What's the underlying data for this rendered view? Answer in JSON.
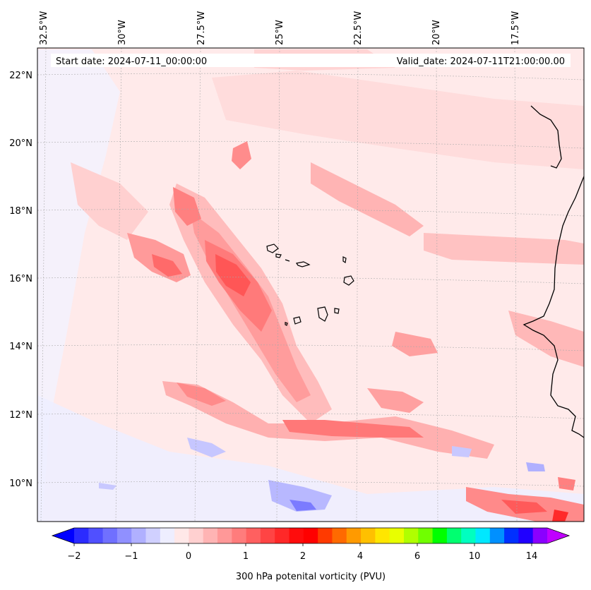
{
  "map": {
    "start_label": "Start date: 2024-07-11_00:00:00",
    "valid_label": "Valid_date: 2024-07-11T21:00:00.00",
    "lon_labels": [
      "32.5°W",
      "30°W",
      "27.5°W",
      "25°W",
      "22.5°W",
      "20°W",
      "17.5°W"
    ],
    "lat_labels": [
      "22°N",
      "20°N",
      "18°N",
      "16°N",
      "14°N",
      "12°N",
      "10°N"
    ]
  },
  "colorbar": {
    "title": "300 hPa potenital vorticity (PVU)",
    "tick_labels": [
      "−2",
      "−1",
      "0",
      "1",
      "2",
      "4",
      "6",
      "10",
      "14"
    ],
    "colors": [
      "#0000ff",
      "#2b2bff",
      "#5050ff",
      "#7070ff",
      "#9090ff",
      "#b0b0ff",
      "#d0d0ff",
      "#eeeeff",
      "#ffe8e8",
      "#ffd0d0",
      "#ffb4b4",
      "#ff9898",
      "#ff7c7c",
      "#ff6060",
      "#ff4444",
      "#ff2828",
      "#ff0c0c",
      "#ff0000",
      "#ff3a00",
      "#ff6a00",
      "#ff9a00",
      "#ffc000",
      "#ffe600",
      "#e8ff00",
      "#b0ff00",
      "#70ff00",
      "#00ff00",
      "#00ff70",
      "#00ffc0",
      "#00e8ff",
      "#0090ff",
      "#0030ff",
      "#2000ff",
      "#8a00ff",
      "#c000ff"
    ]
  }
}
